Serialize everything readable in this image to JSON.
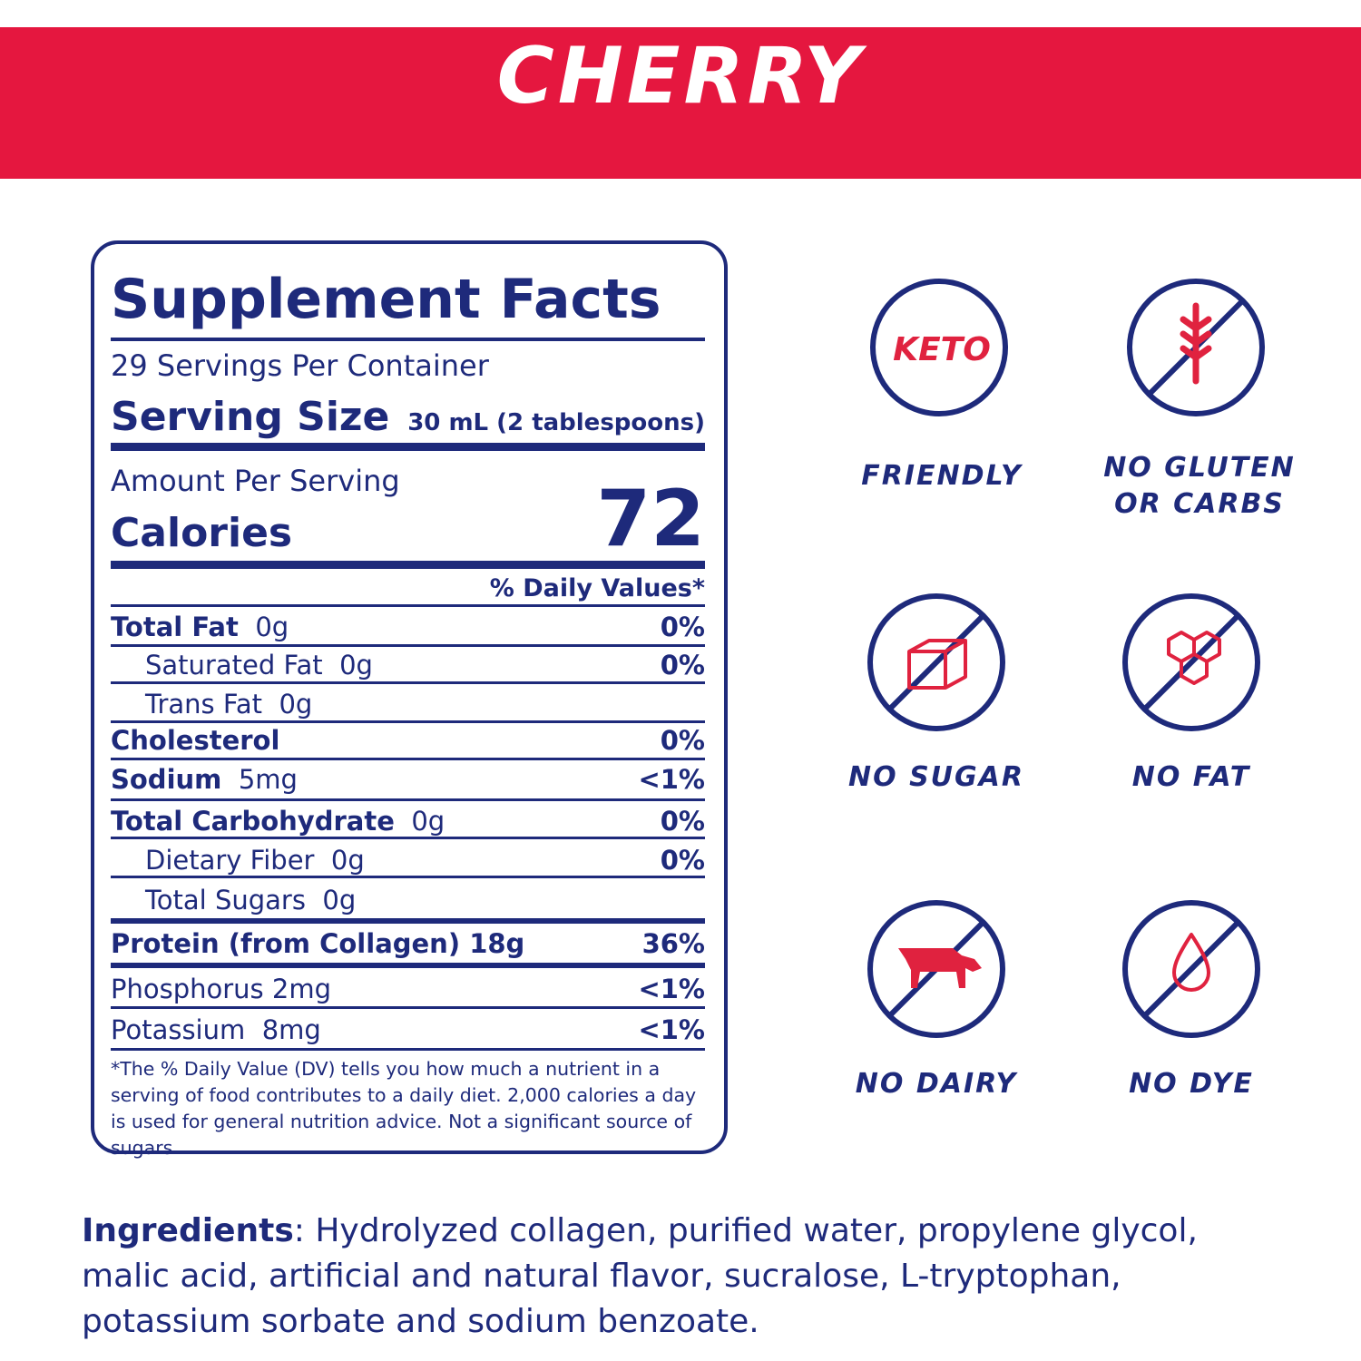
{
  "header": {
    "title": "CHERRY"
  },
  "facts": {
    "title": "Supplement Facts",
    "servings": "29 Servings Per Container",
    "serving_size_label": "Serving Size",
    "serving_size_value": "30 mL (2 tablespoons)",
    "amount_label": "Amount Per Serving",
    "calories_label": "Calories",
    "calories_value": 72,
    "dv_header": "% Daily Values*",
    "rows": [
      {
        "name": "Total Fat",
        "amount": "0g",
        "dv": "0%"
      },
      {
        "name": "Saturated Fat",
        "amount": "0g",
        "dv": "0%"
      },
      {
        "name": "Trans Fat",
        "amount": "0g"
      },
      {
        "name": "Cholesterol",
        "dv": "0%"
      },
      {
        "name": "Sodium",
        "amount": "5mg",
        "dv": "<1%"
      },
      {
        "name": "Total Carbohydrate",
        "amount": "0g",
        "dv": "0%"
      },
      {
        "name": "Dietary Fiber",
        "amount": "0g",
        "dv": "0%"
      },
      {
        "name": "Total Sugars",
        "amount": "0g"
      },
      {
        "name": "Protein (from Collagen)",
        "amount": "18g",
        "dv": "36%"
      },
      {
        "name": "Phosphorus",
        "amount": "2mg",
        "dv": "<1%"
      },
      {
        "name": "Potassium",
        "amount": "8mg",
        "dv": "<1%"
      }
    ],
    "footnote": "*The % Daily Value (DV) tells you how much a nutrient in a serving of food contributes to a daily diet. 2,000 calories a day is used for general nutrition advice. Not a significant source of sugars."
  },
  "badges": [
    {
      "icon_text": "KETO",
      "lines": [
        "FRIENDLY"
      ]
    },
    {
      "lines": [
        "NO GLUTEN",
        "OR CARBS"
      ]
    },
    {
      "lines": [
        "NO SUGAR"
      ]
    },
    {
      "lines": [
        "NO FAT"
      ]
    },
    {
      "lines": [
        "NO DAIRY"
      ]
    },
    {
      "lines": [
        "NO DYE"
      ]
    }
  ],
  "ingredients": {
    "label": "Ingredients",
    "text": ": Hydrolyzed collagen, purified water, propylene glycol, malic acid, artificial and natural flavor, sucralose, L-tryptophan, potassium sorbate and sodium benzoate."
  }
}
